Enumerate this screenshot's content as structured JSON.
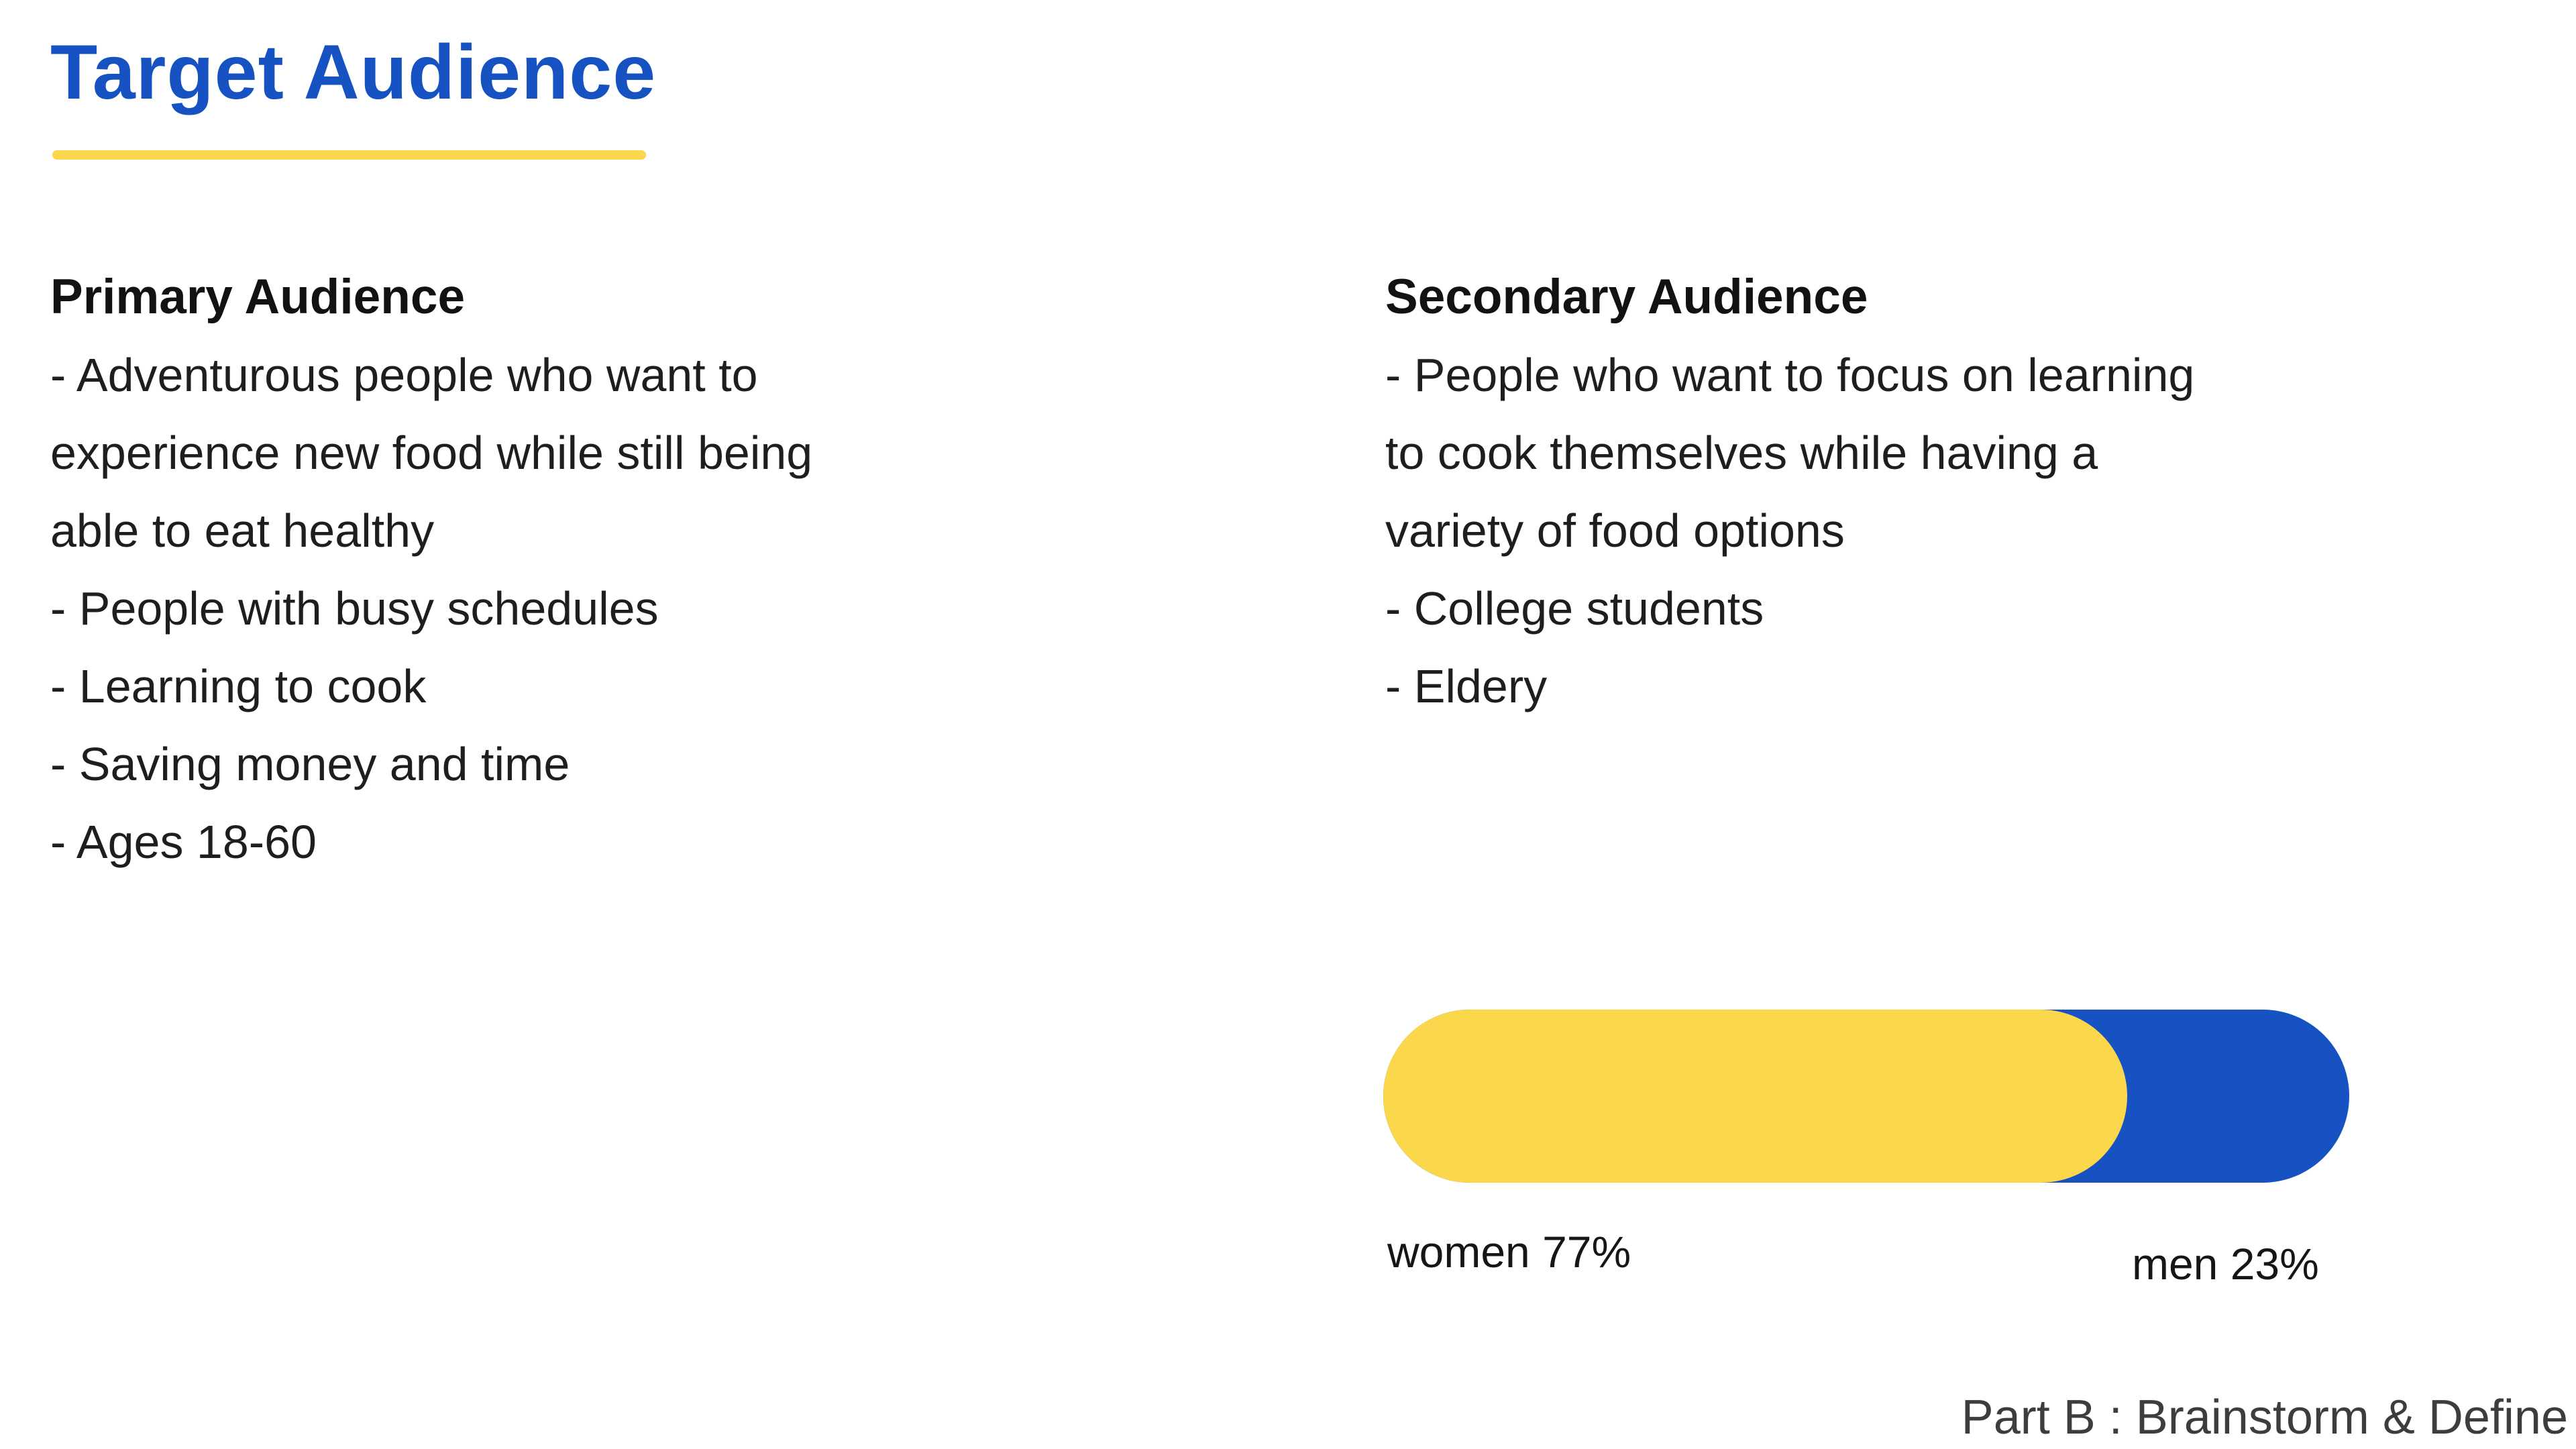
{
  "slide": {
    "title": "Target Audience",
    "footer": "Part B : Brainstorm & Define"
  },
  "primary": {
    "heading": "Primary Audience",
    "lines": [
      "- Adventurous people who want to",
      "experience new food while still being",
      "able to eat healthy",
      "- People with busy schedules",
      "- Learning to cook",
      "- Saving money and time",
      "- Ages 18-60"
    ]
  },
  "secondary": {
    "heading": "Secondary Audience",
    "lines": [
      "- People who want to focus on learning",
      "to cook themselves while having a",
      "variety of food options",
      "- College students",
      "- Eldery"
    ]
  },
  "chart_data": {
    "type": "bar",
    "orientation": "horizontal-stacked",
    "title": "",
    "categories": [
      "women",
      "men"
    ],
    "values": [
      77,
      23
    ],
    "unit": "%",
    "labels": {
      "women": "women 77%",
      "men": "men 23%"
    },
    "segment_colors": [
      "#FBD84B",
      "#1652C2"
    ],
    "legend_position": "below-bar",
    "axis": "none"
  },
  "colors": {
    "title_blue": "#1652C2",
    "accent_yellow": "#FBD84B",
    "body_text": "#1E1E1E",
    "footer_gray": "#3D3D3D"
  }
}
